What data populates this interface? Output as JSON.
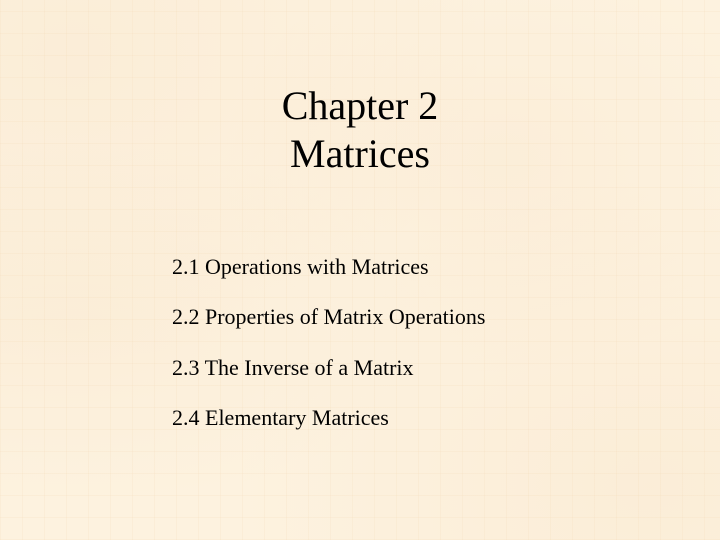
{
  "slide": {
    "background_color": "#fdf2df",
    "pattern_color": "rgba(240,210,170,0.15)",
    "text_color": "#000000",
    "title": {
      "line1": "Chapter 2",
      "line2": "Matrices",
      "fontsize": 40,
      "font_family": "Times New Roman"
    },
    "toc": {
      "fontsize": 22,
      "font_family": "Times New Roman",
      "items": [
        "2.1  Operations with Matrices",
        "2.2  Properties of Matrix Operations",
        "2.3  The Inverse of a Matrix",
        "2.4  Elementary Matrices"
      ]
    }
  }
}
